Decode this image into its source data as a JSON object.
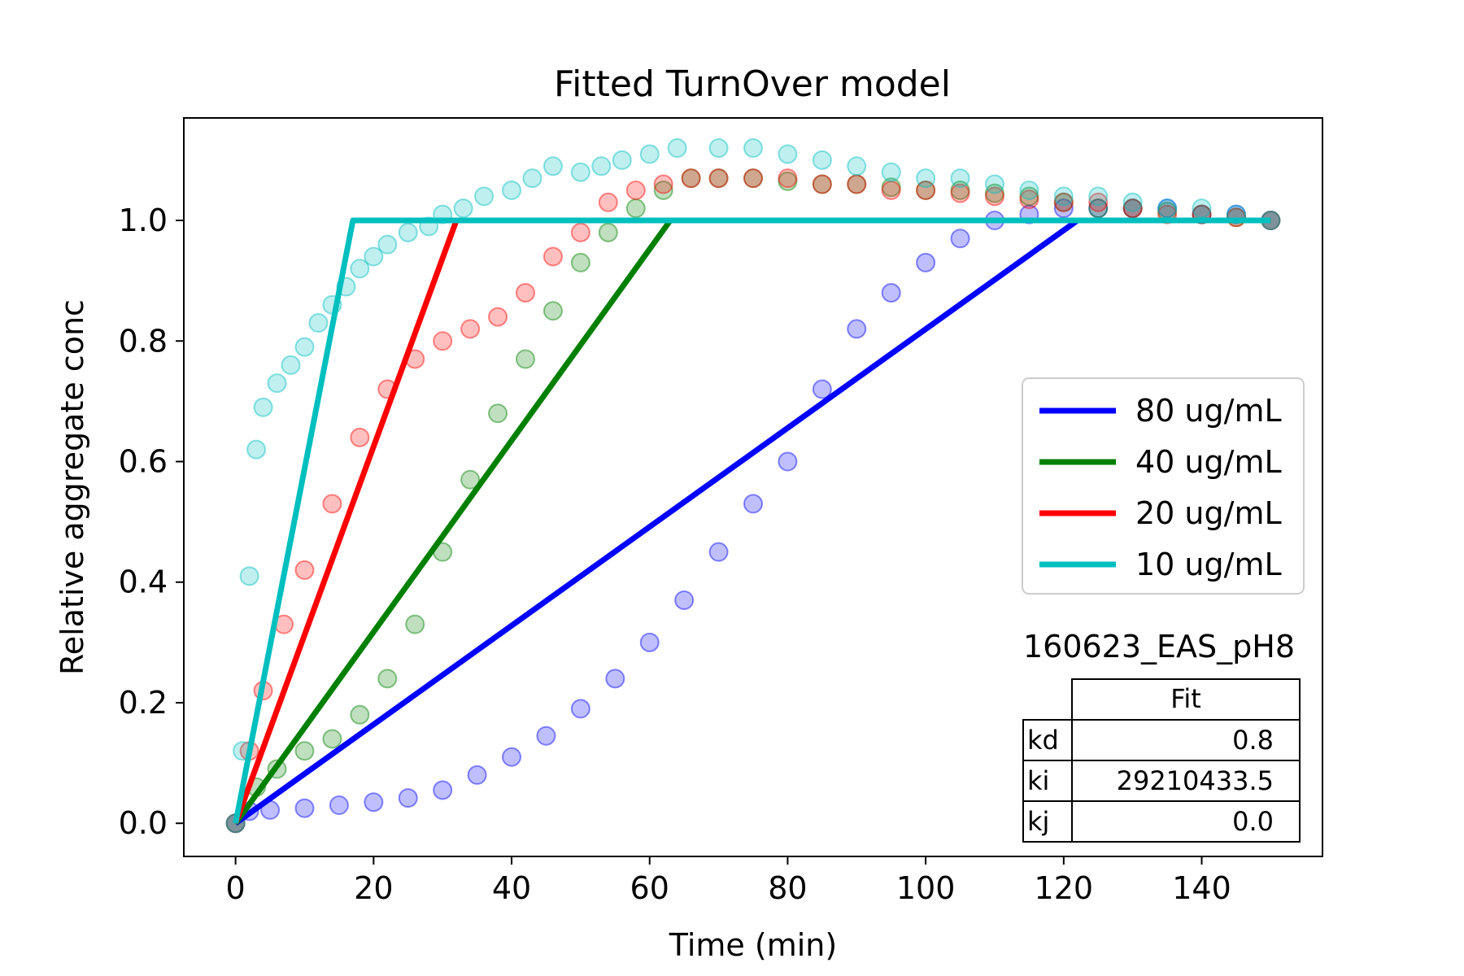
{
  "chart_data": {
    "type": "line",
    "title": "Fitted TurnOver model",
    "xlabel": "Time (min)",
    "ylabel": "Relative aggregate conc",
    "xlim": [
      -7.5,
      157.5
    ],
    "ylim": [
      -0.055,
      1.17
    ],
    "xticks": [
      0,
      20,
      40,
      60,
      80,
      100,
      120,
      140
    ],
    "yticks": [
      0.0,
      0.2,
      0.4,
      0.6,
      0.8,
      1.0
    ],
    "xtick_labels": [
      "0",
      "20",
      "40",
      "60",
      "80",
      "100",
      "120",
      "140"
    ],
    "ytick_labels": [
      "0.0",
      "0.2",
      "0.4",
      "0.6",
      "0.8",
      "1.0"
    ],
    "legend_position": "center-right",
    "series": [
      {
        "name": "80 ug/mL",
        "color": "#0000ff",
        "fit": [
          [
            0,
            0
          ],
          [
            122,
            1.0
          ],
          [
            150,
            1.0
          ]
        ],
        "points": [
          [
            0,
            0
          ],
          [
            2,
            0.02
          ],
          [
            5,
            0.022
          ],
          [
            10,
            0.025
          ],
          [
            15,
            0.03
          ],
          [
            20,
            0.035
          ],
          [
            25,
            0.042
          ],
          [
            30,
            0.055
          ],
          [
            35,
            0.08
          ],
          [
            40,
            0.11
          ],
          [
            45,
            0.145
          ],
          [
            50,
            0.19
          ],
          [
            55,
            0.24
          ],
          [
            60,
            0.3
          ],
          [
            65,
            0.37
          ],
          [
            70,
            0.45
          ],
          [
            75,
            0.53
          ],
          [
            80,
            0.6
          ],
          [
            85,
            0.72
          ],
          [
            90,
            0.82
          ],
          [
            95,
            0.88
          ],
          [
            100,
            0.93
          ],
          [
            105,
            0.97
          ],
          [
            110,
            1.0
          ],
          [
            115,
            1.01
          ],
          [
            120,
            1.02
          ],
          [
            125,
            1.02
          ],
          [
            130,
            1.02
          ],
          [
            135,
            1.02
          ],
          [
            140,
            1.01
          ],
          [
            145,
            1.01
          ],
          [
            150,
            1.0
          ]
        ]
      },
      {
        "name": "40 ug/mL",
        "color": "#008000",
        "fit": [
          [
            0,
            0
          ],
          [
            63,
            1.0
          ],
          [
            150,
            1.0
          ]
        ],
        "points": [
          [
            0,
            0
          ],
          [
            3,
            0.06
          ],
          [
            6,
            0.09
          ],
          [
            10,
            0.12
          ],
          [
            14,
            0.14
          ],
          [
            18,
            0.18
          ],
          [
            22,
            0.24
          ],
          [
            26,
            0.33
          ],
          [
            30,
            0.45
          ],
          [
            34,
            0.57
          ],
          [
            38,
            0.68
          ],
          [
            42,
            0.77
          ],
          [
            46,
            0.85
          ],
          [
            50,
            0.93
          ],
          [
            54,
            0.98
          ],
          [
            58,
            1.02
          ],
          [
            62,
            1.05
          ],
          [
            66,
            1.07
          ],
          [
            70,
            1.07
          ],
          [
            75,
            1.07
          ],
          [
            80,
            1.065
          ],
          [
            85,
            1.06
          ],
          [
            90,
            1.06
          ],
          [
            95,
            1.055
          ],
          [
            100,
            1.05
          ],
          [
            105,
            1.05
          ],
          [
            110,
            1.045
          ],
          [
            115,
            1.04
          ],
          [
            120,
            1.03
          ],
          [
            125,
            1.02
          ],
          [
            130,
            1.02
          ],
          [
            135,
            1.015
          ],
          [
            140,
            1.01
          ],
          [
            145,
            1.005
          ],
          [
            150,
            1.0
          ]
        ]
      },
      {
        "name": "20 ug/mL",
        "color": "#ff0000",
        "fit": [
          [
            0,
            0
          ],
          [
            32,
            1.0
          ],
          [
            150,
            1.0
          ]
        ],
        "points": [
          [
            0,
            0
          ],
          [
            2,
            0.12
          ],
          [
            4,
            0.22
          ],
          [
            7,
            0.33
          ],
          [
            10,
            0.42
          ],
          [
            14,
            0.53
          ],
          [
            18,
            0.64
          ],
          [
            22,
            0.72
          ],
          [
            26,
            0.77
          ],
          [
            30,
            0.8
          ],
          [
            34,
            0.82
          ],
          [
            38,
            0.84
          ],
          [
            42,
            0.88
          ],
          [
            46,
            0.94
          ],
          [
            50,
            0.98
          ],
          [
            54,
            1.03
          ],
          [
            58,
            1.05
          ],
          [
            62,
            1.06
          ],
          [
            66,
            1.07
          ],
          [
            70,
            1.07
          ],
          [
            75,
            1.07
          ],
          [
            80,
            1.07
          ],
          [
            85,
            1.06
          ],
          [
            90,
            1.06
          ],
          [
            95,
            1.05
          ],
          [
            100,
            1.05
          ],
          [
            105,
            1.045
          ],
          [
            110,
            1.04
          ],
          [
            115,
            1.035
          ],
          [
            120,
            1.03
          ],
          [
            125,
            1.03
          ],
          [
            130,
            1.02
          ],
          [
            135,
            1.01
          ],
          [
            140,
            1.01
          ],
          [
            145,
            1.005
          ],
          [
            150,
            1.0
          ]
        ]
      },
      {
        "name": "10 ug/mL",
        "color": "#00bfbf",
        "fit": [
          [
            0,
            0
          ],
          [
            17,
            1.0
          ],
          [
            150,
            1.0
          ]
        ],
        "points": [
          [
            0,
            0
          ],
          [
            1,
            0.12
          ],
          [
            2,
            0.41
          ],
          [
            3,
            0.62
          ],
          [
            4,
            0.69
          ],
          [
            6,
            0.73
          ],
          [
            8,
            0.76
          ],
          [
            10,
            0.79
          ],
          [
            12,
            0.83
          ],
          [
            14,
            0.86
          ],
          [
            16,
            0.89
          ],
          [
            18,
            0.92
          ],
          [
            20,
            0.94
          ],
          [
            22,
            0.96
          ],
          [
            25,
            0.98
          ],
          [
            28,
            0.99
          ],
          [
            30,
            1.01
          ],
          [
            33,
            1.02
          ],
          [
            36,
            1.04
          ],
          [
            40,
            1.05
          ],
          [
            43,
            1.07
          ],
          [
            46,
            1.09
          ],
          [
            50,
            1.08
          ],
          [
            53,
            1.09
          ],
          [
            56,
            1.1
          ],
          [
            60,
            1.11
          ],
          [
            64,
            1.12
          ],
          [
            70,
            1.12
          ],
          [
            75,
            1.12
          ],
          [
            80,
            1.11
          ],
          [
            85,
            1.1
          ],
          [
            90,
            1.09
          ],
          [
            95,
            1.08
          ],
          [
            100,
            1.07
          ],
          [
            105,
            1.07
          ],
          [
            110,
            1.06
          ],
          [
            115,
            1.05
          ],
          [
            120,
            1.04
          ],
          [
            125,
            1.04
          ],
          [
            130,
            1.03
          ],
          [
            135,
            1.02
          ],
          [
            140,
            1.02
          ],
          [
            145,
            1.01
          ],
          [
            150,
            1.0
          ]
        ]
      }
    ],
    "table": {
      "title": "160623_EAS_pH8",
      "column_header": "Fit",
      "rows": [
        {
          "label": "kd",
          "value": "0.8"
        },
        {
          "label": "ki",
          "value": "29210433.5"
        },
        {
          "label": "kj",
          "value": "0.0"
        }
      ]
    }
  }
}
